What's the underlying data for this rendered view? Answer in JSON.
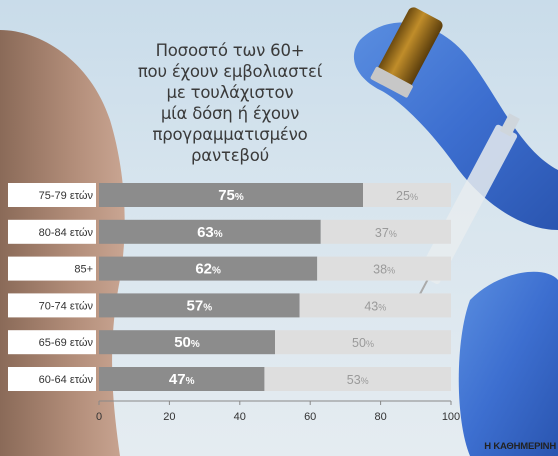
{
  "title": "Ποσοστό των 60+\nπου έχουν εμβολιαστεί\nμε τουλάχιστον\nμία δόση ή έχουν\nπρογραμματισμένο\nραντεβού",
  "credit": "Η ΚΑΘΗΜΕΡΙΝΗ",
  "colors": {
    "dark_bar": "#8c8c8c",
    "light_bar": "#dedede",
    "label_bg": "#ffffff"
  },
  "chart_data": {
    "type": "bar",
    "orientation": "horizontal",
    "stacked": true,
    "categories": [
      "75-79 ετών",
      "80-84 ετών",
      "85+",
      "70-74 ετών",
      "65-69 ετών",
      "60-64 ετών"
    ],
    "series": [
      {
        "values": [
          75,
          63,
          62,
          57,
          50,
          47
        ],
        "labels": [
          "75",
          "63",
          "62",
          "57",
          "50",
          "47"
        ],
        "color": "#8c8c8c"
      },
      {
        "values": [
          25,
          37,
          38,
          43,
          50,
          53
        ],
        "labels": [
          "25",
          "37",
          "38",
          "43",
          "50",
          "53"
        ],
        "color": "#dedede"
      }
    ],
    "unit": "%",
    "xlim": [
      0,
      100
    ],
    "xticks": [
      0,
      20,
      40,
      60,
      80,
      100
    ],
    "xticklabels": [
      "0",
      "20",
      "40",
      "60",
      "80",
      "100"
    ],
    "grid": false,
    "legend": "none"
  }
}
